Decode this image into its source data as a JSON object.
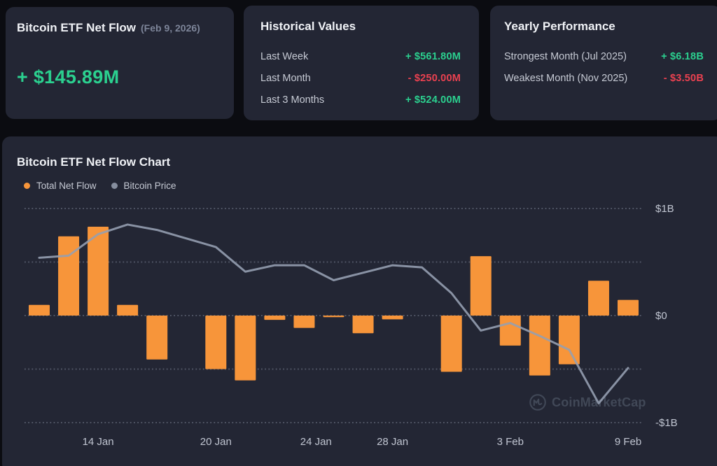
{
  "cards": {
    "net_flow": {
      "title": "Bitcoin ETF Net Flow",
      "date_suffix": "(Feb 9, 2026)",
      "value": "+ $145.89M",
      "direction": "up"
    },
    "historical": {
      "title": "Historical Values",
      "rows": [
        {
          "label": "Last Week",
          "value": "+ $561.80M",
          "direction": "up"
        },
        {
          "label": "Last Month",
          "value": "- $250.00M",
          "direction": "down"
        },
        {
          "label": "Last 3 Months",
          "value": "+ $524.00M",
          "direction": "up"
        }
      ]
    },
    "yearly": {
      "title": "Yearly Performance",
      "rows": [
        {
          "label": "Strongest Month (Jul 2025)",
          "value": "+ $6.18B",
          "direction": "up"
        },
        {
          "label": "Weakest Month (Nov 2025)",
          "value": "- $3.50B",
          "direction": "down"
        }
      ]
    }
  },
  "chart": {
    "title": "Bitcoin ETF Net Flow Chart",
    "legend": [
      {
        "label": "Total Net Flow",
        "color": "#f7953a"
      },
      {
        "label": "Bitcoin Price",
        "color": "#868e9e"
      }
    ],
    "watermark": "CoinMarketCap"
  },
  "chart_data": {
    "type": "bar",
    "categories": [
      "12 Jan",
      "13 Jan",
      "14 Jan",
      "15 Jan",
      "16 Jan",
      "19 Jan",
      "20 Jan",
      "21 Jan",
      "22 Jan",
      "23 Jan",
      "26 Jan",
      "27 Jan",
      "28 Jan",
      "29 Jan",
      "30 Jan",
      "2 Feb",
      "3 Feb",
      "4 Feb",
      "5 Feb",
      "6 Feb",
      "9 Feb"
    ],
    "series": [
      {
        "name": "Total Net Flow",
        "type": "bar",
        "unit": "$M",
        "values": [
          100,
          740,
          830,
          100,
          -410,
          0,
          -500,
          -605,
          -40,
          -115,
          -15,
          -165,
          -35,
          0,
          -525,
          555,
          -280,
          -560,
          -455,
          325,
          145.89
        ]
      },
      {
        "name": "Bitcoin Price",
        "type": "line",
        "unit": "$B equivalent on flow axis",
        "values": [
          0.54,
          0.56,
          0.76,
          0.85,
          0.8,
          0.72,
          0.64,
          0.41,
          0.47,
          0.47,
          0.33,
          0.4,
          0.47,
          0.45,
          0.21,
          -0.14,
          -0.07,
          -0.19,
          -0.32,
          -0.82,
          -0.49
        ]
      }
    ],
    "x_ticks": [
      {
        "index": 2,
        "label": "14 Jan"
      },
      {
        "index": 6,
        "label": "20 Jan"
      },
      {
        "index": 9.4,
        "label": "24 Jan"
      },
      {
        "index": 12,
        "label": "28 Jan"
      },
      {
        "index": 16,
        "label": "3 Feb"
      },
      {
        "index": 20,
        "label": "9 Feb"
      }
    ],
    "y_ticks": [
      {
        "value": 1,
        "label": "$1B"
      },
      {
        "value": 0,
        "label": "$0"
      },
      {
        "value": -1,
        "label": "-$1B"
      }
    ],
    "gridlines": [
      1,
      0.5,
      0,
      -0.5,
      -1
    ],
    "ylim": [
      -1.27,
      1.09
    ],
    "grid": "dotted-horizontal",
    "legend_position": "top-left"
  },
  "colors": {
    "page_bg": "#0b0c11",
    "card_bg": "#232634",
    "green": "#2bd08f",
    "red": "#ea4150",
    "bar_orange": "#f7953a",
    "price_line": "#959eb0",
    "grid_dots": "#5e6474",
    "axis_text": "#c0c5d1",
    "watermark": "#414857",
    "title_text": "#f0f2f6",
    "label_text": "#c6cad4",
    "muted_text": "#7d8599"
  }
}
